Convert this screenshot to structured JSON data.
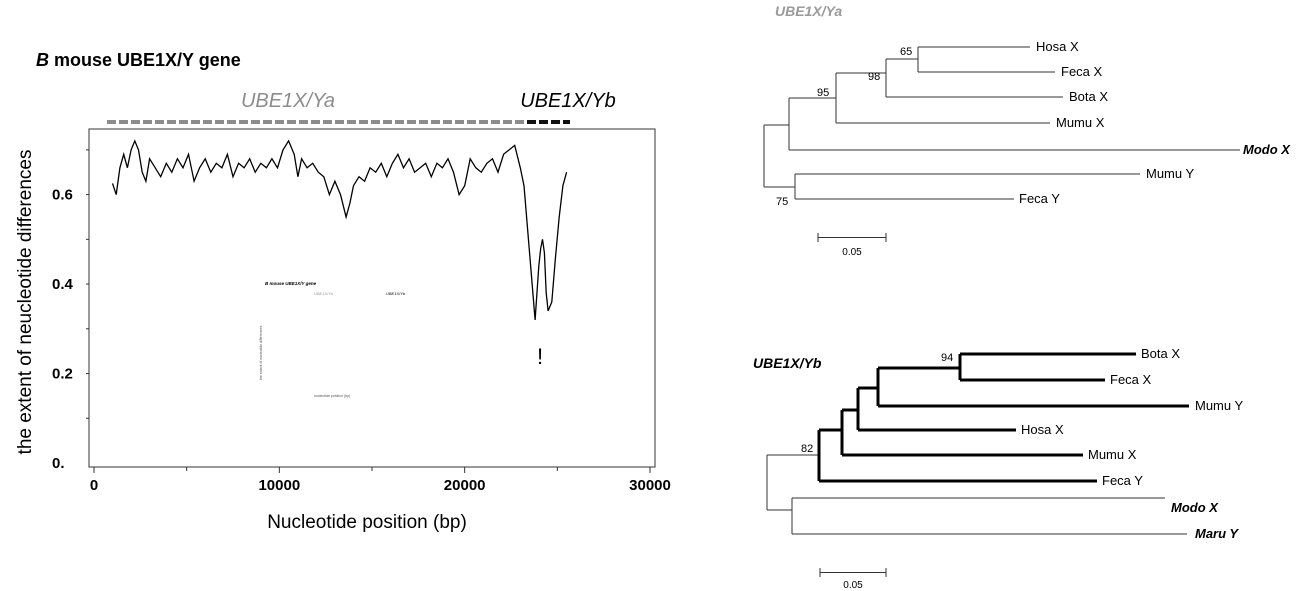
{
  "figure_title": {
    "letter": "B",
    "rest": " mouse UBE1X/Y gene"
  },
  "region_labels": {
    "ya": "UBE1X/Ya",
    "yb": "UBE1X/Yb"
  },
  "exclamation": "!",
  "inset_text": {
    "title": "B mouse UBE1X/Y gene",
    "ya": "UBE1X/Ya",
    "yb": "UBE1X/Yb",
    "ylabel": "the extent of nucleotide differences",
    "xlabel": "nucleotide position (bp)"
  },
  "colors": {
    "ya": "#8c8c8c",
    "yb": "#111111",
    "line": "#000000"
  },
  "chart_data": [
    {
      "type": "line",
      "title": "B mouse UBE1X/Y gene",
      "xlabel": "Nucleotide position (bp)",
      "ylabel": "the extent of neucleotide differences",
      "xlim": [
        0,
        30000
      ],
      "ylim": [
        0,
        0.75
      ],
      "xticks": [
        0,
        10000,
        20000,
        30000
      ],
      "xtick_labels": [
        "0",
        "10000",
        "20000",
        "30000"
      ],
      "yticks": [
        0,
        0.2,
        0.4,
        0.6
      ],
      "ytick_labels": [
        "0.",
        "0.2",
        "0.4",
        "0.6"
      ],
      "x": [
        1000,
        1200,
        1400,
        1600,
        1800,
        2000,
        2200,
        2400,
        2600,
        2800,
        3000,
        3300,
        3600,
        3900,
        4200,
        4500,
        4800,
        5100,
        5400,
        5700,
        6000,
        6300,
        6600,
        6900,
        7200,
        7500,
        7800,
        8100,
        8400,
        8700,
        9000,
        9300,
        9600,
        9900,
        10200,
        10500,
        10800,
        11000,
        11200,
        11500,
        11800,
        12100,
        12400,
        12700,
        13000,
        13300,
        13600,
        13800,
        14000,
        14300,
        14600,
        14900,
        15200,
        15500,
        15800,
        16100,
        16400,
        16700,
        17000,
        17300,
        17600,
        17900,
        18200,
        18500,
        18800,
        19100,
        19400,
        19700,
        20000,
        20300,
        20600,
        20900,
        21200,
        21500,
        21800,
        22100,
        22400,
        22700,
        23000,
        23200,
        23400,
        23600,
        23800,
        24000,
        24100,
        24200,
        24300,
        24400,
        24500,
        24700,
        24900,
        25100,
        25300,
        25500
      ],
      "y": [
        0.625,
        0.6,
        0.66,
        0.69,
        0.66,
        0.7,
        0.72,
        0.7,
        0.65,
        0.63,
        0.68,
        0.66,
        0.64,
        0.67,
        0.65,
        0.68,
        0.66,
        0.69,
        0.63,
        0.66,
        0.68,
        0.65,
        0.67,
        0.66,
        0.69,
        0.64,
        0.67,
        0.66,
        0.68,
        0.65,
        0.67,
        0.66,
        0.68,
        0.66,
        0.7,
        0.72,
        0.69,
        0.64,
        0.68,
        0.66,
        0.67,
        0.65,
        0.64,
        0.6,
        0.63,
        0.6,
        0.55,
        0.58,
        0.62,
        0.64,
        0.63,
        0.66,
        0.65,
        0.67,
        0.64,
        0.67,
        0.69,
        0.66,
        0.68,
        0.65,
        0.66,
        0.67,
        0.64,
        0.67,
        0.66,
        0.68,
        0.65,
        0.6,
        0.62,
        0.68,
        0.66,
        0.65,
        0.67,
        0.68,
        0.65,
        0.69,
        0.7,
        0.71,
        0.66,
        0.62,
        0.52,
        0.42,
        0.32,
        0.44,
        0.48,
        0.5,
        0.47,
        0.38,
        0.34,
        0.36,
        0.46,
        0.55,
        0.62,
        0.65
      ],
      "regions": [
        {
          "name": "UBE1X/Ya",
          "x": [
            600,
            23500
          ]
        },
        {
          "name": "UBE1X/Yb",
          "x": [
            23500,
            25600
          ]
        }
      ]
    },
    {
      "type": "tree",
      "title": "UBE1X/Ya",
      "leaves": [
        "Hosa X",
        "Feca X",
        "Bota X",
        "Mumu X",
        "Modo X",
        "Mumu Y",
        "Feca Y"
      ],
      "bootstrap": [
        "65",
        "98",
        "95",
        "75"
      ],
      "scale_label": "0.05"
    },
    {
      "type": "tree",
      "title": "UBE1X/Yb",
      "leaves": [
        "Bota X",
        "Feca X",
        "Mumu Y",
        "Hosa X",
        "Mumu X",
        "Feca Y",
        "Modo X",
        "Maru Y"
      ],
      "bootstrap": [
        "94",
        "82"
      ],
      "scale_label": "0.05"
    }
  ]
}
